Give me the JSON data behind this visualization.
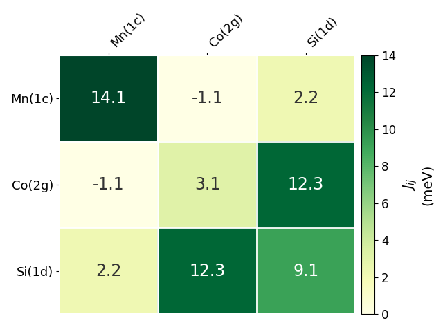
{
  "matrix": [
    [
      14.1,
      -1.1,
      2.2
    ],
    [
      -1.1,
      3.1,
      12.3
    ],
    [
      2.2,
      12.3,
      9.1
    ]
  ],
  "row_labels": [
    "Mn(1c)",
    "Co(2g)",
    "Si(1d)"
  ],
  "col_labels": [
    "Mn(1c)",
    "Co(2g)",
    "Si(1d)"
  ],
  "colorbar_label": "Jᵢⱼ (meV)",
  "vmin": 0,
  "vmax": 14,
  "cmap": "YlGn",
  "text_threshold": 7.0,
  "text_color_light": "#333333",
  "text_color_dark": "white",
  "fontsize_cells": 17,
  "fontsize_labels": 13,
  "fontsize_colorbar": 13,
  "colorbar_ticks": [
    0,
    2,
    4,
    6,
    8,
    10,
    12,
    14
  ]
}
